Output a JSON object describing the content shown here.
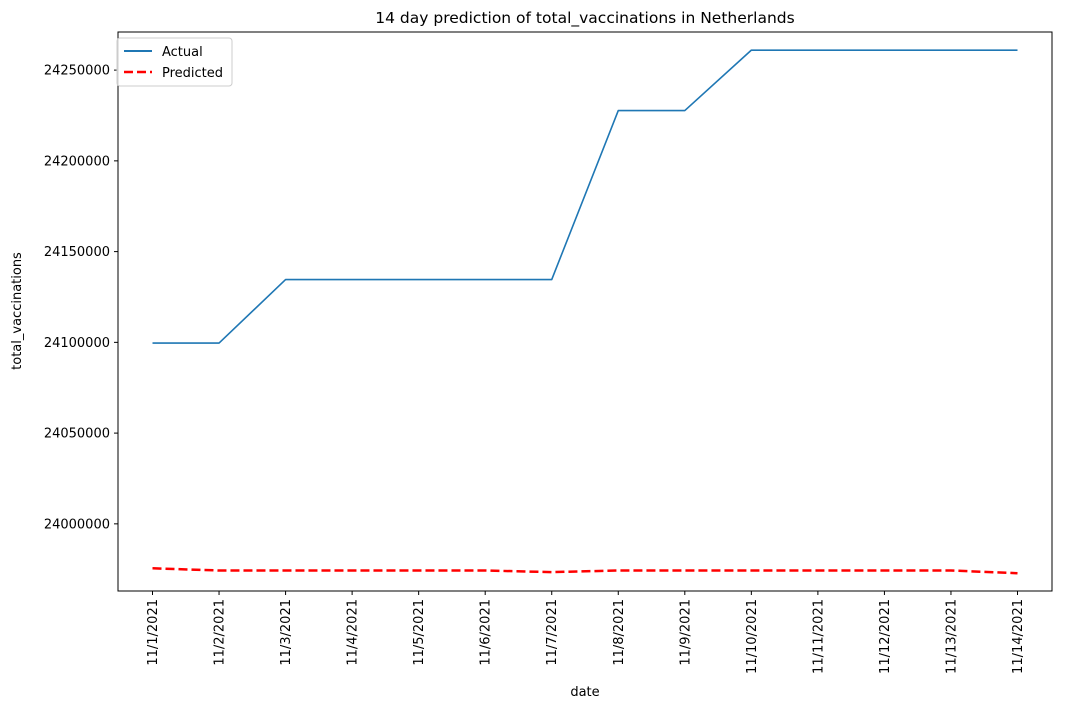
{
  "chart_data": {
    "type": "line",
    "title": "14 day prediction of total_vaccinations in Netherlands",
    "xlabel": "date",
    "ylabel": "total_vaccinations",
    "categories": [
      "11/1/2021",
      "11/2/2021",
      "11/3/2021",
      "11/4/2021",
      "11/5/2021",
      "11/6/2021",
      "11/7/2021",
      "11/8/2021",
      "11/9/2021",
      "11/10/2021",
      "11/11/2021",
      "11/12/2021",
      "11/13/2021",
      "11/14/2021"
    ],
    "yticks": [
      "24000000",
      "24050000",
      "24100000",
      "24150000",
      "24200000",
      "24250000"
    ],
    "ylim": [
      23963000,
      24271000
    ],
    "grid": false,
    "legend_position": "top-left",
    "series": [
      {
        "name": "Actual",
        "color": "#1f77b4",
        "style": "solid",
        "values": [
          24099600,
          24099600,
          24134600,
          24134600,
          24134600,
          24134600,
          24134600,
          24227700,
          24227700,
          24261000,
          24261000,
          24261000,
          24261000,
          24261000
        ]
      },
      {
        "name": "Predicted",
        "color": "#ff0000",
        "style": "dashed",
        "values": [
          23975500,
          23974300,
          23974300,
          23974300,
          23974300,
          23974300,
          23973400,
          23974300,
          23974300,
          23974300,
          23974300,
          23974300,
          23974300,
          23972800
        ]
      }
    ]
  }
}
